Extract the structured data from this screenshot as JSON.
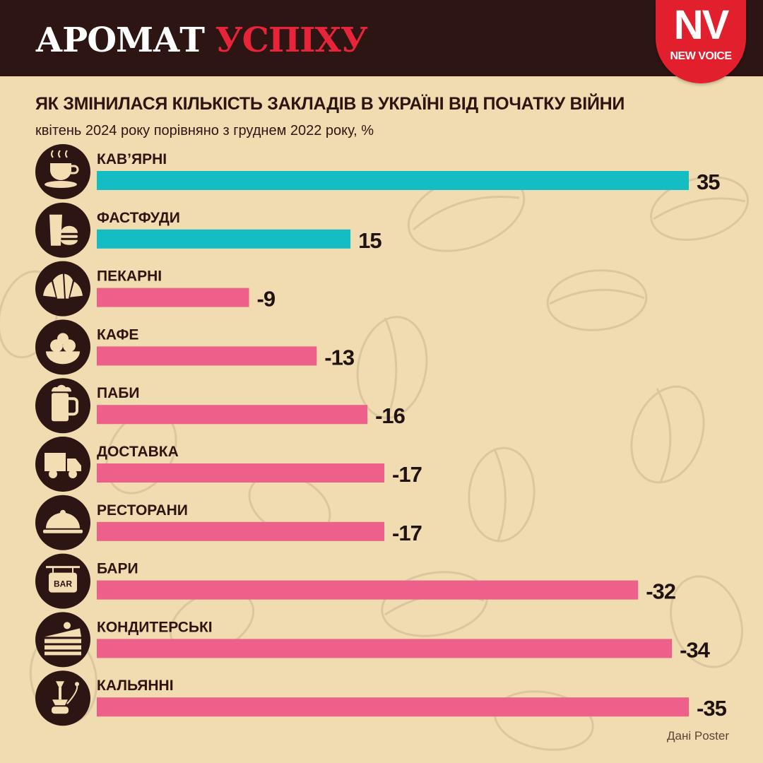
{
  "header": {
    "brand_word1": "АРОМАТ",
    "brand_word2": "УСПІХУ",
    "logo_main": "NV",
    "logo_sub": "NEW VOICE"
  },
  "source": "Дані Poster",
  "colors": {
    "background": "#f0dcb0",
    "header_bg": "#2c1512",
    "positive": "#14bcc4",
    "negative": "#ec6089",
    "icon_circle": "#2c1512",
    "icon_fill": "#f3ddb3",
    "accent_red": "#e8243a"
  },
  "chart_data": {
    "type": "bar",
    "orientation": "horizontal",
    "title": "ЯК ЗМІНИЛАСЯ КІЛЬКІСТЬ ЗАКЛАДІВ В УКРАЇНІ ВІД ПОЧАТКУ ВІЙНИ",
    "subtitle": "квітень 2024 року порівняно з груднем 2022 року, %",
    "categories": [
      "КАВ’ЯРНІ",
      "ФАСТФУДИ",
      "ПЕКАРНІ",
      "КАФЕ",
      "ПАБИ",
      "ДОСТАВКА",
      "РЕСТОРАНИ",
      "БАРИ",
      "КОНДИТЕРСЬКІ",
      "КАЛЬЯННІ"
    ],
    "values": [
      35,
      15,
      -9,
      -13,
      -16,
      -17,
      -17,
      -32,
      -34,
      -35
    ],
    "value_labels": [
      "35",
      "15",
      "-9",
      "-13",
      "-16",
      "-17",
      "-17",
      "-32",
      "-34",
      "-35"
    ],
    "icons": [
      "coffee-cup-icon",
      "fast-food-icon",
      "croissant-icon",
      "ice-cream-bowl-icon",
      "beer-mug-icon",
      "delivery-truck-icon",
      "cloche-icon",
      "bar-sign-icon",
      "cake-slice-icon",
      "hookah-icon"
    ],
    "bar_length": "absolute value",
    "grid": false,
    "legend": "none"
  }
}
